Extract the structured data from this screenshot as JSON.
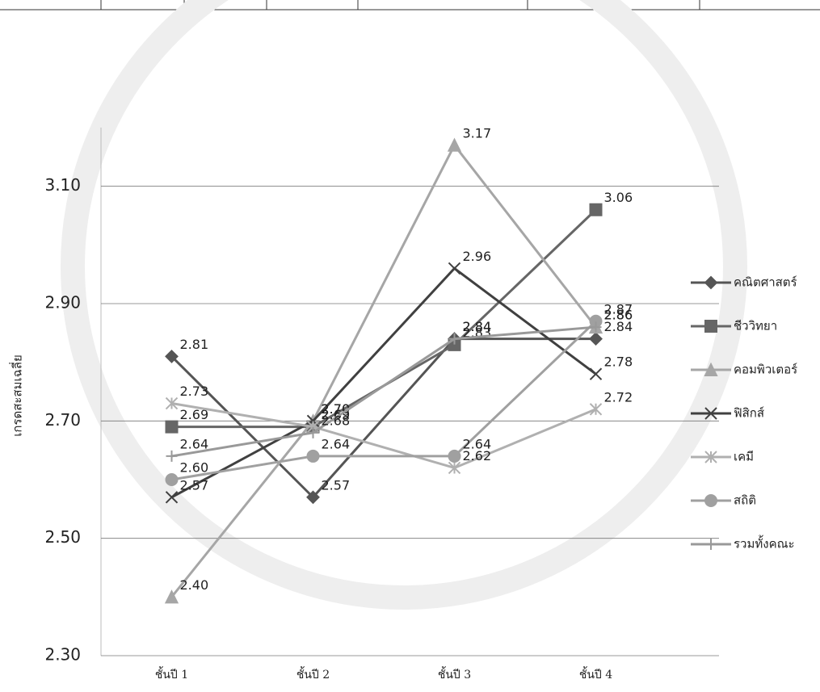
{
  "chart_data": {
    "type": "line",
    "y_label": "เกรดสะสมเฉลี่ย",
    "categories": [
      "ชั้นปี 1",
      "ชั้นปี 2",
      "ชั้นปี 3",
      "ชั้นปี 4"
    ],
    "ylim": [
      2.3,
      3.2
    ],
    "yticks": [
      {
        "value": 2.3,
        "label": "2.30"
      },
      {
        "value": 2.5,
        "label": "2.50"
      },
      {
        "value": 2.7,
        "label": "2.70"
      },
      {
        "value": 2.9,
        "label": "2.90"
      },
      {
        "value": 3.1,
        "label": "3.10"
      }
    ],
    "grid": true,
    "series": [
      {
        "name": "คณิตศาสตร์",
        "color": "#555555",
        "marker": "diamond",
        "values": [
          2.81,
          2.57,
          2.84,
          2.84
        ],
        "value_labels": [
          "2.81",
          "2.57",
          "2.84",
          "2.84"
        ]
      },
      {
        "name": "ชีววิทยา",
        "color": "#666666",
        "marker": "square",
        "values": [
          2.69,
          2.69,
          2.83,
          3.06
        ],
        "value_labels": [
          "2.69",
          "2.69",
          "2.83",
          "3.06"
        ]
      },
      {
        "name": "คอมพิวเตอร์",
        "color": "#a6a6a6",
        "marker": "triangle",
        "values": [
          2.4,
          2.7,
          3.17,
          2.86
        ],
        "value_labels": [
          "2.40",
          "2.70",
          "3.17",
          "2.86"
        ]
      },
      {
        "name": "ฟิสิกส์",
        "color": "#404040",
        "marker": "x",
        "values": [
          2.57,
          2.7,
          2.96,
          2.78
        ],
        "value_labels": [
          "2.57",
          "2.70",
          "2.96",
          "2.78"
        ]
      },
      {
        "name": "เคมี",
        "color": "#b0b0b0",
        "marker": "asterisk",
        "values": [
          2.73,
          2.69,
          2.62,
          2.72
        ],
        "value_labels": [
          "2.73",
          "2.69",
          "2.62",
          "2.72"
        ]
      },
      {
        "name": "สถิติ",
        "color": "#a0a0a0",
        "marker": "circle",
        "values": [
          2.6,
          2.64,
          2.64,
          2.87
        ],
        "value_labels": [
          "2.60",
          "2.64",
          "2.64",
          "2.87"
        ]
      },
      {
        "name": "รวมทั้งคณะ",
        "color": "#999999",
        "marker": "plus",
        "values": [
          2.64,
          2.68,
          2.84,
          2.86
        ],
        "value_labels": [
          "2.64",
          "2.68",
          "2.84",
          "2.86"
        ]
      }
    ]
  }
}
